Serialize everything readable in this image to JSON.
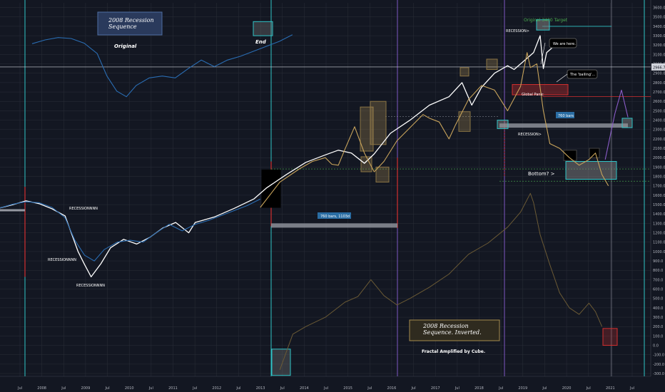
{
  "chart_data": {
    "type": "line",
    "y_ticks": [
      3600,
      3500,
      3400,
      3300,
      3200,
      3100,
      3000,
      2900,
      2800,
      2700,
      2600,
      2500,
      2400,
      2300,
      2200,
      2100,
      2000,
      1900,
      1800,
      1700,
      1600,
      1500,
      1400,
      1300,
      1200,
      1100,
      1000,
      900,
      800,
      700,
      600,
      500,
      400,
      300,
      200,
      100,
      0,
      -100,
      -200,
      -300
    ],
    "ylim": [
      -330,
      3650
    ],
    "x_ticks": [
      "Jul",
      "2008",
      "Jul",
      "2009",
      "Jul",
      "2010",
      "Jul",
      "2011",
      "Jul",
      "2012",
      "Jul",
      "2013",
      "Jul",
      "2014",
      "Jul",
      "2015",
      "Jul",
      "2016",
      "Jul",
      "2017",
      "Jul",
      "2018",
      "Jul",
      "2019",
      "Jul",
      "2020",
      "Jul",
      "2021",
      "Jul"
    ],
    "price_tag": "2966.7",
    "series": [
      {
        "name": "",
        "role": "price",
        "color": "#ffffff",
        "points": [
          [
            0.0,
            1465
          ],
          [
            0.02,
            1500
          ],
          [
            0.04,
            1540
          ],
          [
            0.06,
            1510
          ],
          [
            0.08,
            1455
          ],
          [
            0.1,
            1380
          ],
          [
            0.12,
            1000
          ],
          [
            0.13,
            860
          ],
          [
            0.14,
            730
          ],
          [
            0.155,
            870
          ],
          [
            0.17,
            1040
          ],
          [
            0.19,
            1130
          ],
          [
            0.21,
            1080
          ],
          [
            0.23,
            1150
          ],
          [
            0.25,
            1250
          ],
          [
            0.27,
            1310
          ],
          [
            0.29,
            1200
          ],
          [
            0.3,
            1310
          ],
          [
            0.33,
            1370
          ],
          [
            0.36,
            1460
          ],
          [
            0.39,
            1560
          ],
          [
            0.41,
            1680
          ],
          [
            0.44,
            1820
          ],
          [
            0.47,
            1950
          ],
          [
            0.5,
            2030
          ],
          [
            0.52,
            2080
          ],
          [
            0.54,
            2050
          ],
          [
            0.56,
            1940
          ],
          [
            0.575,
            2040
          ],
          [
            0.6,
            2260
          ],
          [
            0.63,
            2400
          ],
          [
            0.66,
            2560
          ],
          [
            0.69,
            2650
          ],
          [
            0.71,
            2800
          ],
          [
            0.725,
            2560
          ],
          [
            0.74,
            2750
          ],
          [
            0.76,
            2900
          ],
          [
            0.78,
            2980
          ],
          [
            0.79,
            2940
          ],
          [
            0.805,
            3030
          ],
          [
            0.82,
            3120
          ],
          [
            0.83,
            3300
          ],
          [
            0.835,
            2950
          ],
          [
            0.84,
            3120
          ],
          [
            0.85,
            3180
          ]
        ]
      },
      {
        "name": "",
        "role": "fractal-original",
        "color": "#2a6db3",
        "points": [
          [
            0.0,
            1465
          ],
          [
            0.02,
            1505
          ],
          [
            0.04,
            1530
          ],
          [
            0.06,
            1520
          ],
          [
            0.08,
            1470
          ],
          [
            0.1,
            1360
          ],
          [
            0.115,
            1120
          ],
          [
            0.13,
            960
          ],
          [
            0.145,
            900
          ],
          [
            0.16,
            1020
          ],
          [
            0.18,
            1100
          ],
          [
            0.2,
            1120
          ],
          [
            0.22,
            1100
          ],
          [
            0.24,
            1200
          ],
          [
            0.26,
            1290
          ],
          [
            0.28,
            1220
          ],
          [
            0.3,
            1290
          ],
          [
            0.32,
            1330
          ],
          [
            0.35,
            1410
          ],
          [
            0.38,
            1490
          ],
          [
            0.4,
            1560
          ]
        ]
      },
      {
        "name": "",
        "role": "fractal-overlay",
        "color": "#c9a45b",
        "points": [
          [
            0.4,
            1470
          ],
          [
            0.43,
            1740
          ],
          [
            0.46,
            1880
          ],
          [
            0.48,
            1960
          ],
          [
            0.5,
            2000
          ],
          [
            0.51,
            1930
          ],
          [
            0.52,
            1920
          ],
          [
            0.53,
            2090
          ],
          [
            0.545,
            2330
          ],
          [
            0.56,
            2050
          ],
          [
            0.575,
            1850
          ],
          [
            0.59,
            1960
          ],
          [
            0.61,
            2180
          ],
          [
            0.63,
            2320
          ],
          [
            0.65,
            2460
          ],
          [
            0.66,
            2420
          ],
          [
            0.675,
            2380
          ],
          [
            0.69,
            2200
          ],
          [
            0.7,
            2350
          ],
          [
            0.72,
            2620
          ],
          [
            0.74,
            2770
          ],
          [
            0.76,
            2720
          ],
          [
            0.78,
            2500
          ],
          [
            0.8,
            2760
          ],
          [
            0.81,
            3120
          ],
          [
            0.815,
            2960
          ],
          [
            0.825,
            3000
          ],
          [
            0.835,
            2500
          ],
          [
            0.845,
            2150
          ],
          [
            0.86,
            2100
          ],
          [
            0.875,
            2000
          ],
          [
            0.89,
            1920
          ],
          [
            0.905,
            1980
          ],
          [
            0.915,
            2050
          ],
          [
            0.925,
            1820
          ],
          [
            0.935,
            1700
          ]
        ]
      },
      {
        "name": "",
        "role": "fractal-inverted-faint",
        "color": "#6b5a35",
        "points": [
          [
            0.43,
            -260
          ],
          [
            0.45,
            120
          ],
          [
            0.47,
            200
          ],
          [
            0.5,
            300
          ],
          [
            0.53,
            460
          ],
          [
            0.55,
            520
          ],
          [
            0.57,
            700
          ],
          [
            0.59,
            530
          ],
          [
            0.61,
            430
          ],
          [
            0.63,
            500
          ],
          [
            0.66,
            620
          ],
          [
            0.69,
            760
          ],
          [
            0.72,
            970
          ],
          [
            0.75,
            1090
          ],
          [
            0.78,
            1260
          ],
          [
            0.8,
            1420
          ],
          [
            0.815,
            1620
          ],
          [
            0.82,
            1520
          ],
          [
            0.83,
            1180
          ],
          [
            0.845,
            860
          ],
          [
            0.86,
            560
          ],
          [
            0.875,
            400
          ],
          [
            0.89,
            330
          ],
          [
            0.905,
            450
          ],
          [
            0.915,
            360
          ],
          [
            0.925,
            200
          ]
        ]
      },
      {
        "name": "",
        "role": "projection",
        "color": "#8a5cc8",
        "points": [
          [
            0.93,
            1980
          ],
          [
            0.945,
            2470
          ],
          [
            0.955,
            2720
          ],
          [
            0.965,
            2430
          ]
        ]
      }
    ],
    "annotations": {
      "box_title": "2008 Recession\nSequence",
      "original": "Original",
      "end": "End",
      "target": "Original 3400 Target",
      "recession_top": "RECESSION>",
      "we_are_here": "We are here.",
      "bailing": "The 'bailing'...",
      "global_panic": "Global Panic",
      "bars_760": "760 bars",
      "recession_mid": "RECESSION>",
      "bottom": "Bottom? >",
      "bars_range": "760 bars, 1103d",
      "recession_a": "RECESSIONNNN",
      "recession_b": "RECESSIONNNN",
      "recession_c": "RECESSIONNNN",
      "inverted": "2008 Recession\nSequence. Inverted.",
      "fractal": "Fractal Amplified by Cube."
    }
  }
}
